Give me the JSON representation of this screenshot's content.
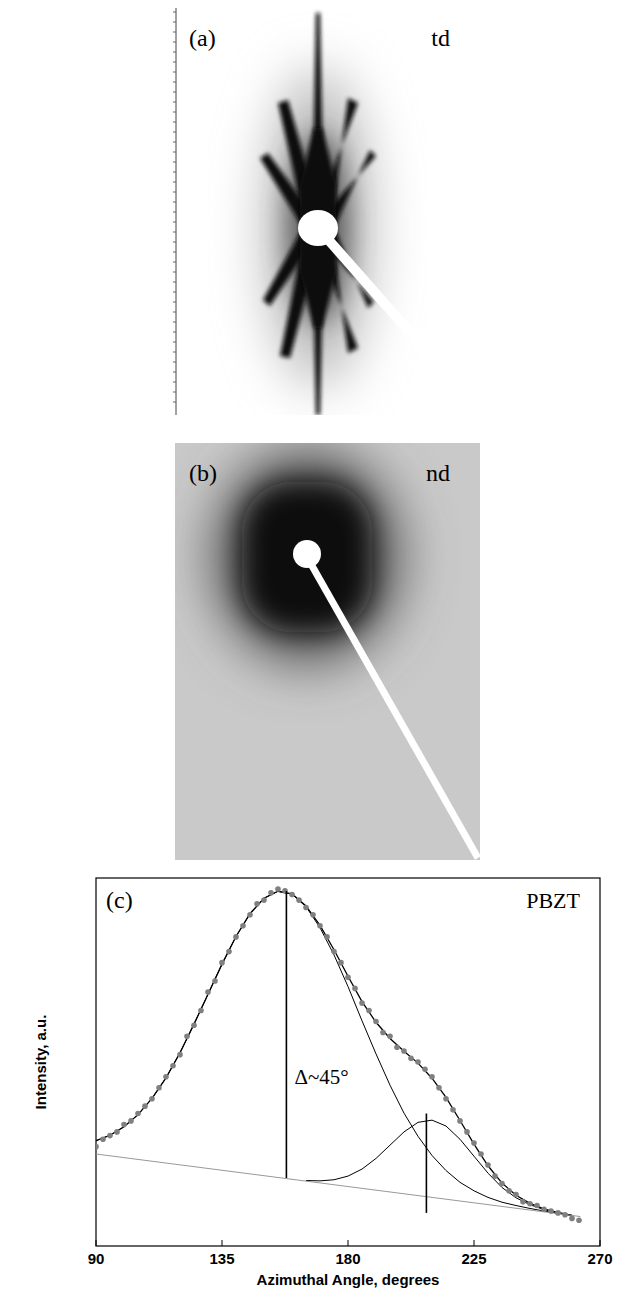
{
  "images": [
    {
      "letter": "(a)",
      "label": "td"
    },
    {
      "letter": "(b)",
      "label": "nd"
    }
  ],
  "chart_data": {
    "type": "scatter",
    "panel": "(c)",
    "x_label": "Azimuthal Angle, degrees",
    "y_label": "Intensity, a.u.",
    "xlim": [
      90,
      270
    ],
    "xticks": [
      90,
      135,
      180,
      225,
      270
    ],
    "ylim": [
      0,
      1
    ],
    "tick_labels": "x",
    "grid": false,
    "annotations": [
      {
        "text": "Δ~45°"
      },
      {
        "text": "PBZT"
      }
    ],
    "peak_lines": [
      {
        "x": 158,
        "y1": 0.185,
        "y2": 0.965
      },
      {
        "x": 208,
        "y1": 0.09,
        "y2": 0.36
      }
    ],
    "series": [
      {
        "type": "scatter",
        "marker": "circle",
        "color": "#808080",
        "x": [
          90,
          92.5,
          95,
          97.5,
          100,
          102.5,
          105,
          107.5,
          110,
          112.5,
          115,
          117.5,
          120,
          122.5,
          125,
          127.5,
          130,
          132.5,
          135,
          137.5,
          140,
          142.5,
          145,
          147.5,
          150,
          152.5,
          155,
          157.5,
          160,
          162.5,
          165,
          167.5,
          170,
          172.5,
          175,
          177.5,
          180,
          182.5,
          185,
          187.5,
          190,
          192.5,
          195,
          197.5,
          200,
          202.5,
          205,
          207.5,
          210,
          212.5,
          215,
          217.5,
          220,
          222.5,
          225,
          227.5,
          230,
          232.5,
          235,
          237.5,
          240,
          242.5,
          245,
          247.5,
          250,
          252.5,
          255,
          257.5,
          260,
          262.5
        ],
        "values": [
          0.27,
          0.29,
          0.3,
          0.31,
          0.33,
          0.34,
          0.36,
          0.38,
          0.4,
          0.43,
          0.46,
          0.49,
          0.52,
          0.57,
          0.6,
          0.64,
          0.69,
          0.72,
          0.77,
          0.8,
          0.84,
          0.87,
          0.9,
          0.93,
          0.94,
          0.96,
          0.97,
          0.965,
          0.955,
          0.94,
          0.92,
          0.9,
          0.87,
          0.84,
          0.8,
          0.77,
          0.73,
          0.7,
          0.66,
          0.64,
          0.61,
          0.58,
          0.57,
          0.54,
          0.53,
          0.51,
          0.5,
          0.48,
          0.46,
          0.43,
          0.4,
          0.37,
          0.34,
          0.31,
          0.28,
          0.25,
          0.22,
          0.19,
          0.17,
          0.15,
          0.14,
          0.12,
          0.115,
          0.11,
          0.1,
          0.095,
          0.09,
          0.085,
          0.075,
          0.07
        ]
      },
      {
        "type": "line",
        "line_style": "solid",
        "color": "#000000",
        "x": [
          90,
          95,
          100,
          105,
          110,
          115,
          120,
          125,
          130,
          135,
          140,
          145,
          150,
          155,
          160,
          165,
          170,
          175,
          180,
          185,
          190,
          195,
          200,
          205,
          210,
          215,
          220,
          225,
          230,
          235,
          240,
          245,
          250,
          255,
          260
        ],
        "values": [
          0.286,
          0.301,
          0.324,
          0.357,
          0.401,
          0.457,
          0.525,
          0.603,
          0.684,
          0.766,
          0.841,
          0.903,
          0.945,
          0.964,
          0.957,
          0.924,
          0.871,
          0.805,
          0.733,
          0.664,
          0.608,
          0.564,
          0.529,
          0.497,
          0.456,
          0.404,
          0.341,
          0.277,
          0.218,
          0.171,
          0.138,
          0.116,
          0.101,
          0.091,
          0.083
        ]
      },
      {
        "type": "line",
        "line_style": "solid",
        "color": "#000000",
        "x": [
          90,
          95,
          100,
          105,
          110,
          115,
          120,
          125,
          130,
          135,
          140,
          145,
          150,
          155,
          160,
          165,
          170,
          175,
          180,
          185,
          190,
          195,
          200,
          205,
          210,
          215,
          220,
          225,
          230,
          235,
          240,
          245,
          250,
          255,
          260
        ],
        "values": [
          0.286,
          0.301,
          0.324,
          0.357,
          0.401,
          0.457,
          0.525,
          0.603,
          0.684,
          0.766,
          0.841,
          0.903,
          0.945,
          0.964,
          0.956,
          0.922,
          0.865,
          0.791,
          0.705,
          0.612,
          0.522,
          0.437,
          0.361,
          0.298,
          0.246,
          0.205,
          0.173,
          0.15,
          0.132,
          0.119,
          0.11,
          0.102,
          0.095,
          0.089,
          0.083
        ]
      },
      {
        "type": "line",
        "line_style": "solid",
        "color": "#000000",
        "x": [
          165,
          170,
          175,
          180,
          185,
          190,
          195,
          200,
          205,
          210,
          215,
          220,
          225,
          230,
          235,
          240,
          245,
          250,
          255,
          260
        ],
        "values": [
          0.178,
          0.177,
          0.18,
          0.19,
          0.209,
          0.238,
          0.274,
          0.31,
          0.336,
          0.342,
          0.326,
          0.29,
          0.244,
          0.198,
          0.159,
          0.131,
          0.112,
          0.099,
          0.09,
          0.083
        ]
      },
      {
        "type": "line",
        "line_style": "solid",
        "color": "#999999",
        "x": [
          90,
          263
        ],
        "values": [
          0.25,
          0.08
        ]
      }
    ]
  }
}
